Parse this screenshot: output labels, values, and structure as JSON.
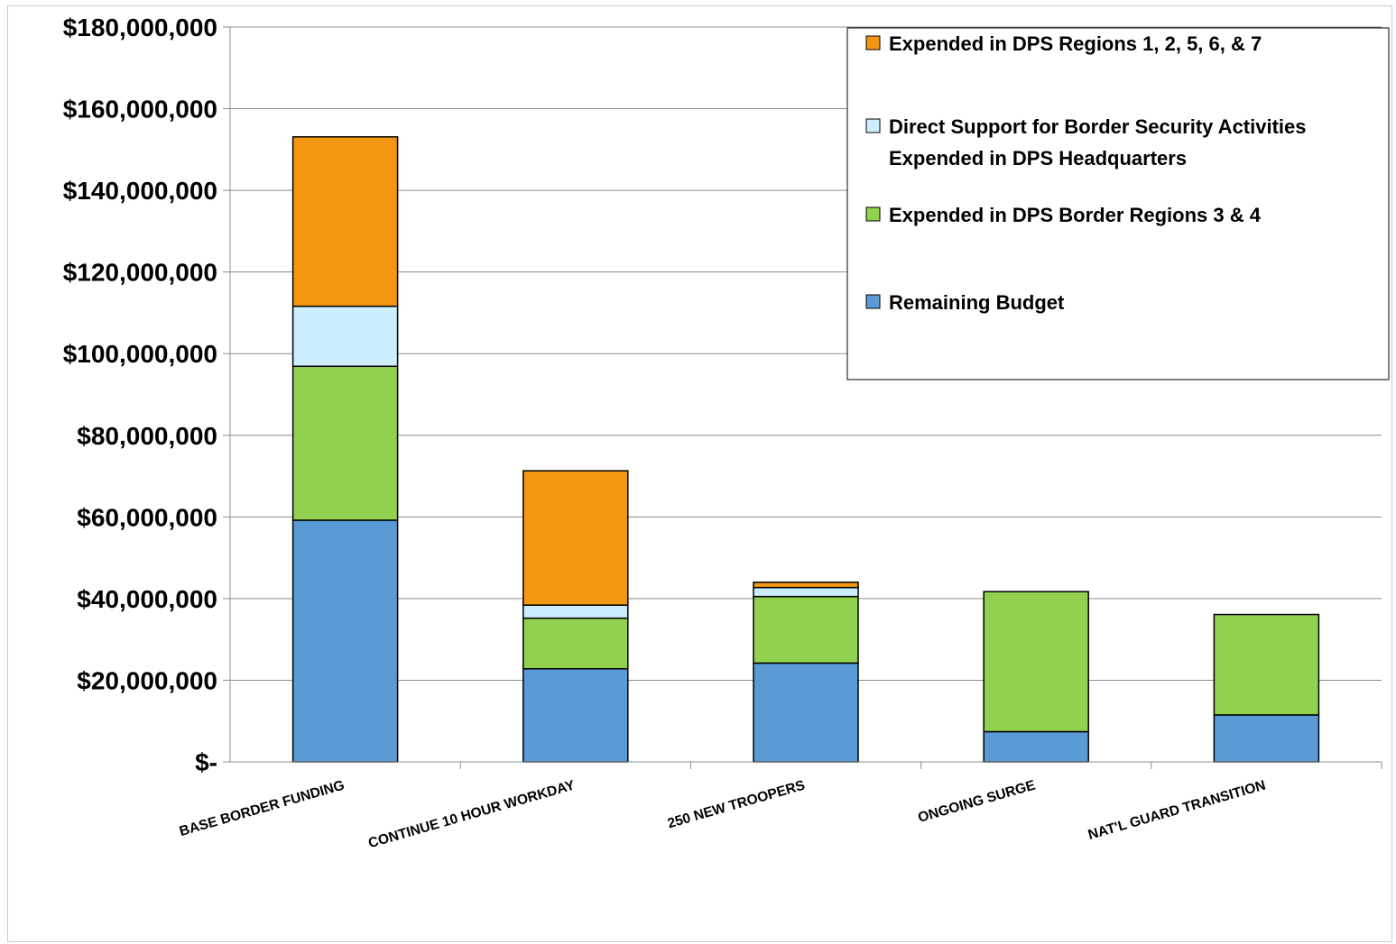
{
  "chart_data": {
    "type": "bar",
    "stacked": true,
    "categories": [
      "BASE BORDER FUNDING",
      "CONTINUE 10 HOUR WORKDAY",
      "250 NEW TROOPERS",
      "ONGOING SURGE",
      "NAT'L GUARD TRANSITION"
    ],
    "series": [
      {
        "name": "Remaining Budget",
        "color": "#5b9bd5",
        "values": [
          59200000,
          22800000,
          24200000,
          7400000,
          11500000
        ]
      },
      {
        "name": "Expended in DPS Border Regions 3 & 4",
        "color": "#92d050",
        "values": [
          37700000,
          12400000,
          16300000,
          34300000,
          24600000
        ]
      },
      {
        "name": "Direct Support for Border Security Activities Expended in DPS Headquarters",
        "color": "#cceeff",
        "values": [
          14700000,
          3200000,
          2200000,
          0,
          0
        ]
      },
      {
        "name": "Expended in DPS Regions 1, 2, 5, 6, & 7",
        "color": "#f39711",
        "values": [
          41500000,
          32900000,
          1300000,
          0,
          0
        ]
      }
    ],
    "legend_order": [
      [
        "Expended in DPS Regions 1, 2, 5, 6, & 7"
      ],
      [
        "Direct Support for Border Security Activities",
        "Expended in DPS Headquarters"
      ],
      [
        "Expended in DPS Border Regions 3 & 4"
      ],
      [
        "Remaining Budget"
      ]
    ],
    "legend_colors": [
      "#f39711",
      "#cceeff",
      "#92d050",
      "#5b9bd5"
    ],
    "ylim": [
      0,
      180000000
    ],
    "y_ticks": [
      0,
      20000000,
      40000000,
      60000000,
      80000000,
      100000000,
      120000000,
      140000000,
      160000000,
      180000000
    ],
    "y_tick_labels": [
      "$-",
      "$20,000,000",
      "$40,000,000",
      "$60,000,000",
      "$80,000,000",
      "$100,000,000",
      "$120,000,000",
      "$140,000,000",
      "$160,000,000",
      "$180,000,000"
    ],
    "grid": true,
    "legend_position": "top-right",
    "title": "",
    "xlabel": "",
    "ylabel": ""
  }
}
